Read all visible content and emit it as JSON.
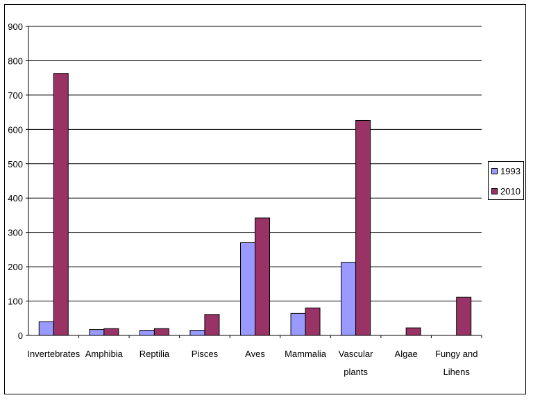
{
  "chart_data": {
    "type": "bar",
    "categories": [
      "Invertebrates",
      "Amphibia",
      "Reptilia",
      "Pisces",
      "Aves",
      "Mammalia",
      "Vascular plants",
      "Algae",
      "Fungy and Lihens"
    ],
    "category_lines": [
      [
        "Invertebrates"
      ],
      [
        "Amphibia"
      ],
      [
        "Reptilia"
      ],
      [
        "Pisces"
      ],
      [
        "Aves"
      ],
      [
        "Mammalia"
      ],
      [
        "Vascular",
        "plants"
      ],
      [
        "Algae"
      ],
      [
        "Fungy and",
        "Lihens"
      ]
    ],
    "series": [
      {
        "name": "1993",
        "color": "#9999ff",
        "values": [
          40,
          17,
          15,
          15,
          270,
          64,
          213,
          0,
          0
        ]
      },
      {
        "name": "2010",
        "color": "#993366",
        "values": [
          763,
          20,
          20,
          61,
          342,
          80,
          626,
          22,
          111
        ]
      }
    ],
    "ylim": [
      0,
      900
    ],
    "yticks": [
      0,
      100,
      200,
      300,
      400,
      500,
      600,
      700,
      800,
      900
    ],
    "grid": true,
    "legend_position": "right"
  }
}
